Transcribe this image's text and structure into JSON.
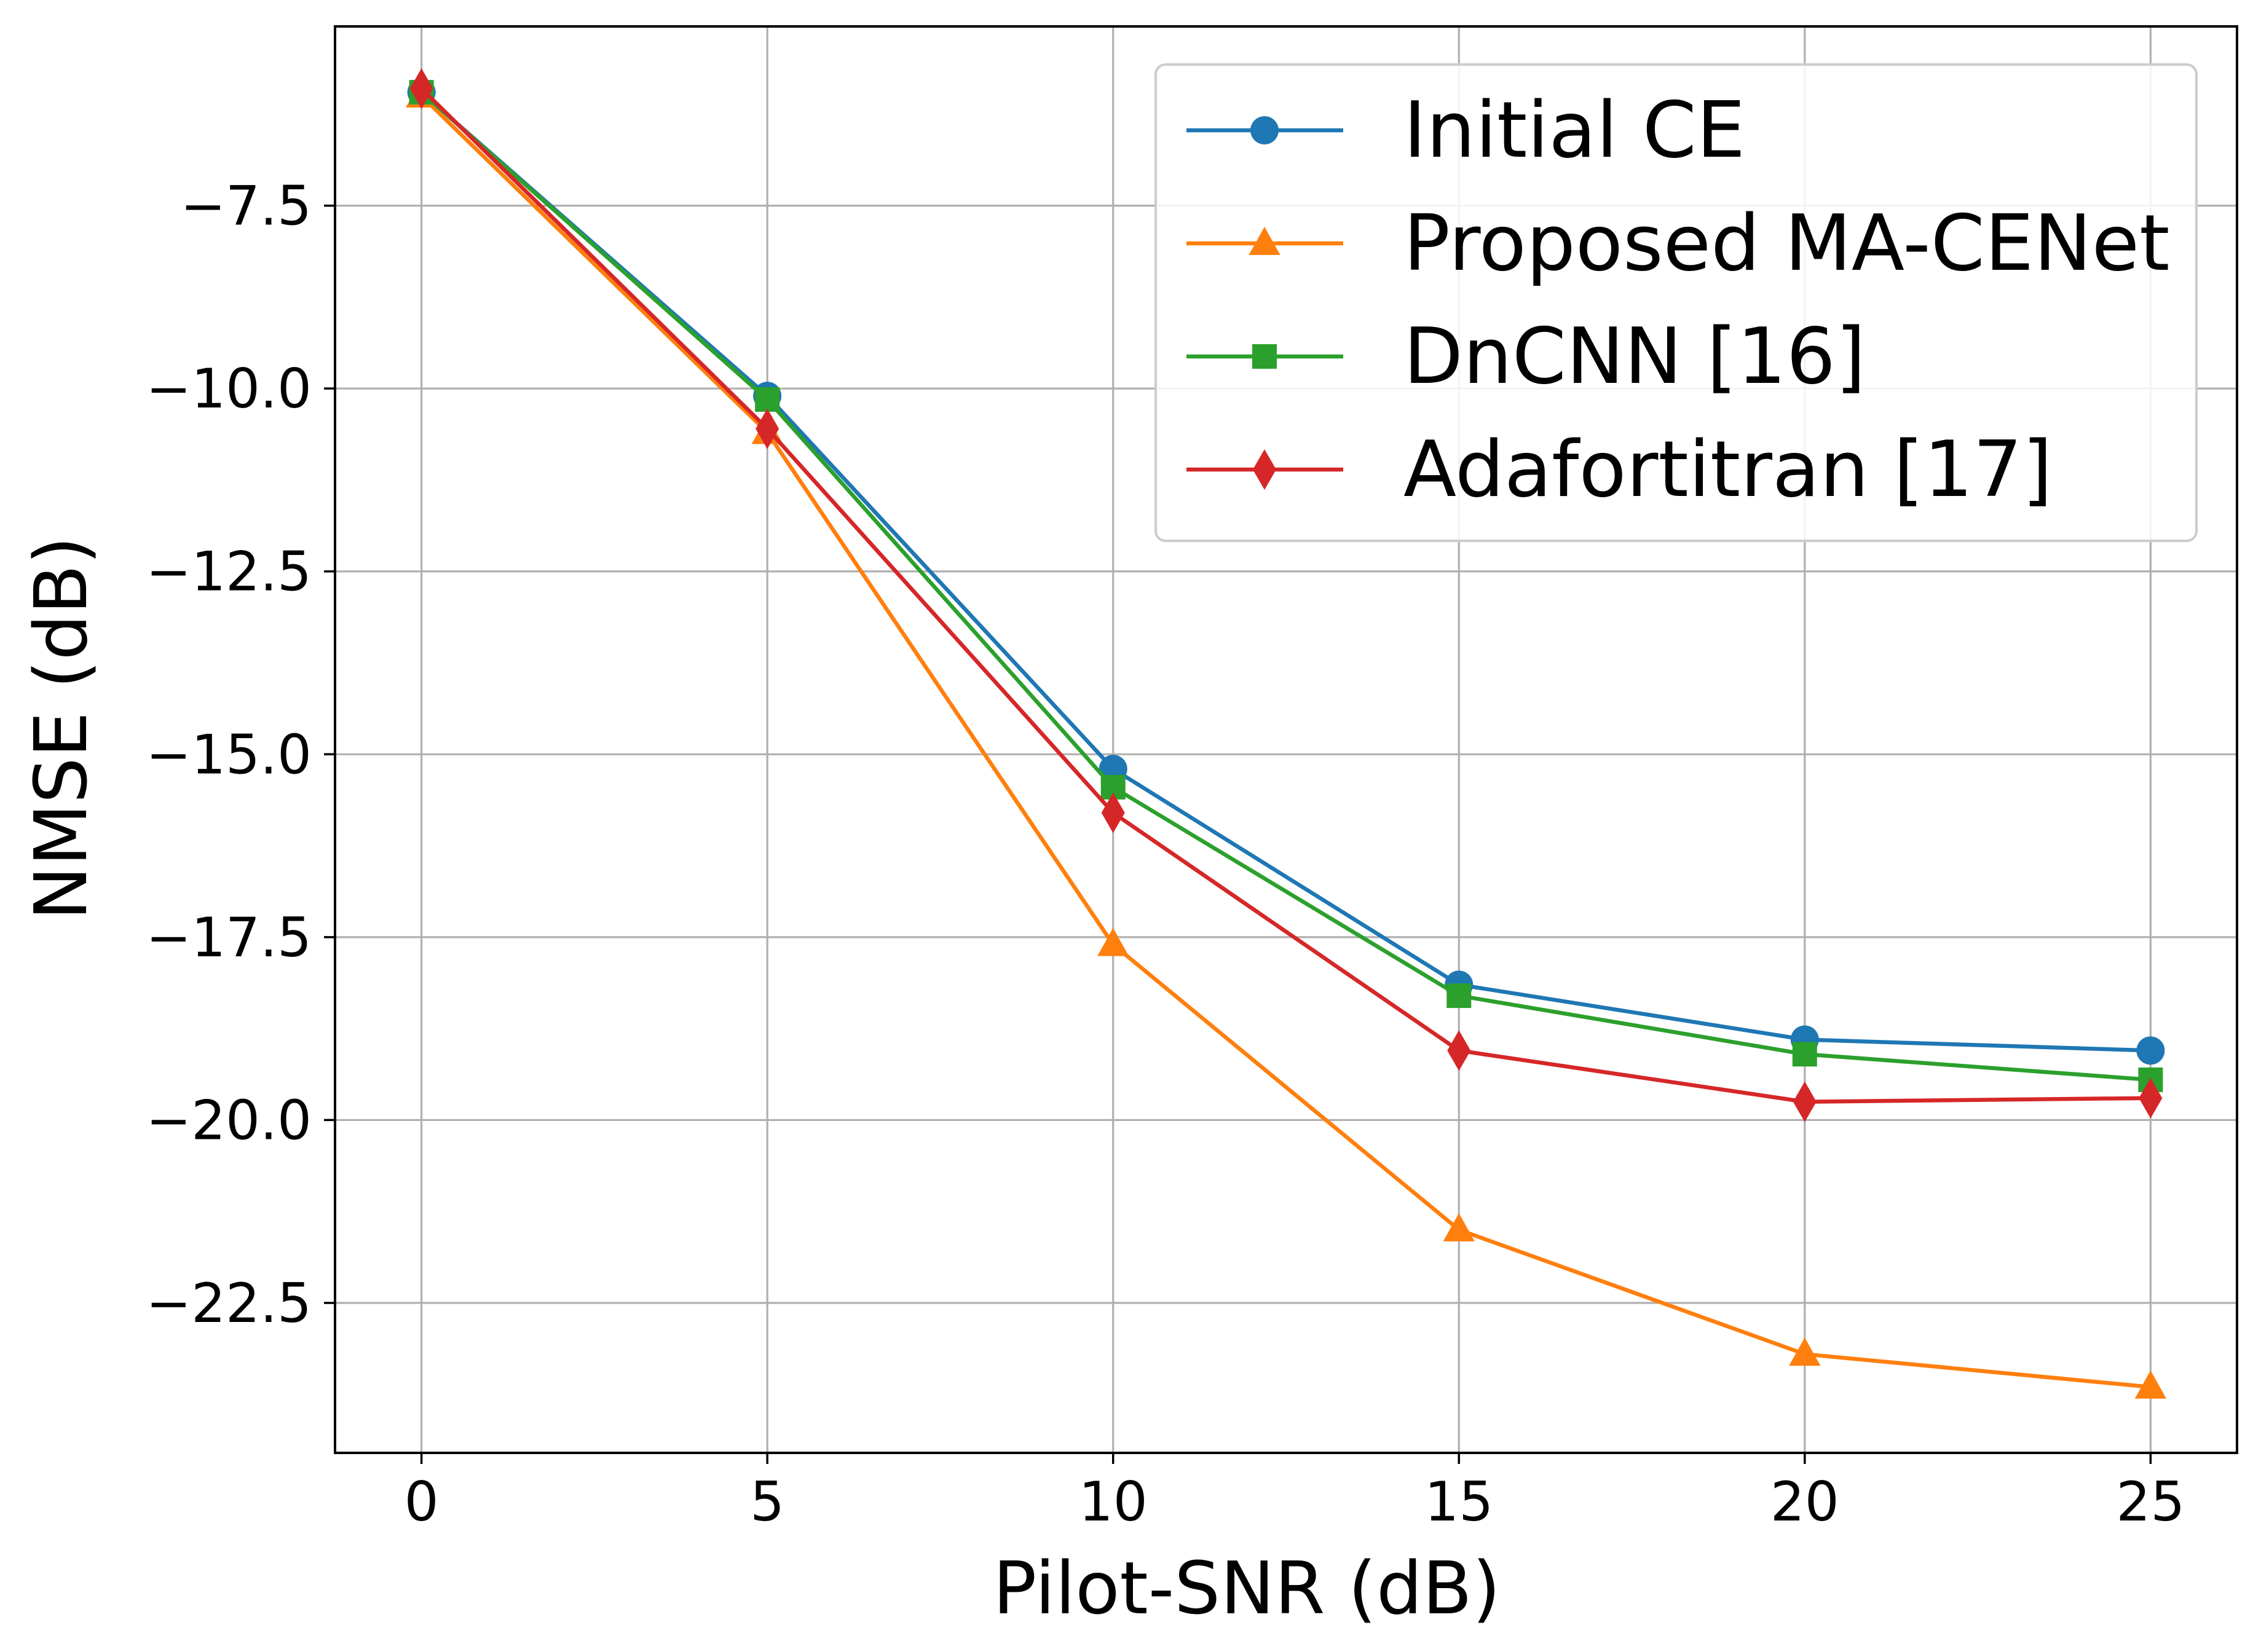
{
  "chart_data": {
    "type": "line",
    "title": "",
    "xlabel": "Pilot-SNR (dB)",
    "ylabel": "NMSE (dB)",
    "x": [
      0,
      5,
      10,
      15,
      20,
      25
    ],
    "xlim": [
      -1.25,
      26.25
    ],
    "ylim": [
      -24.55,
      -5.05
    ],
    "xticks": [
      0,
      5,
      10,
      15,
      20,
      25
    ],
    "xtick_labels": [
      "0",
      "5",
      "10",
      "15",
      "20",
      "25"
    ],
    "yticks": [
      -7.5,
      -10.0,
      -12.5,
      -15.0,
      -17.5,
      -20.0,
      -22.5
    ],
    "ytick_labels": [
      "−7.5",
      "−10.0",
      "−12.5",
      "−15.0",
      "−17.5",
      "−20.0",
      "−22.5"
    ],
    "grid": true,
    "legend_position": "top-right",
    "series": [
      {
        "name": "Initial CE",
        "color": "#1f77b4",
        "marker": "circle",
        "values": [
          -5.95,
          -10.1,
          -15.2,
          -18.15,
          -18.9,
          -19.05
        ]
      },
      {
        "name": "Proposed MA-CENet",
        "color": "#ff7f0e",
        "marker": "triangle",
        "values": [
          -6.0,
          -10.6,
          -17.6,
          -21.5,
          -23.2,
          -23.65
        ]
      },
      {
        "name": "DnCNN [16]",
        "color": "#2ca02c",
        "marker": "square",
        "values": [
          -5.95,
          -10.15,
          -15.45,
          -18.3,
          -19.1,
          -19.45
        ]
      },
      {
        "name": "Adafortitran [17]",
        "color": "#d62728",
        "marker": "diamond",
        "values": [
          -5.9,
          -10.55,
          -15.8,
          -19.05,
          -19.75,
          -19.7
        ]
      }
    ]
  }
}
